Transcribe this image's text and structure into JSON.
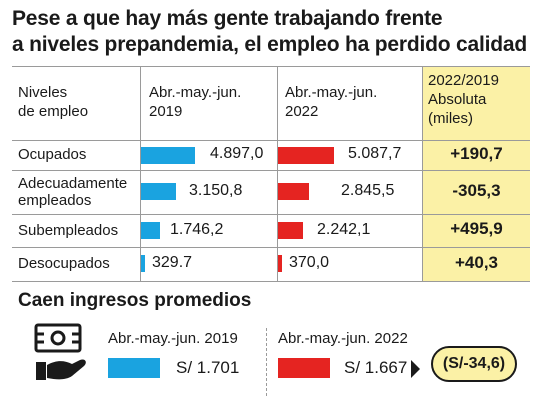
{
  "title_line1": "Pese a que hay más gente trabajando frente",
  "title_line2": "a niveles prepandemia, el empleo ha perdido calidad",
  "header": {
    "col1_line1": "Niveles",
    "col1_line2": "de empleo",
    "col2_line1": "Abr.-may.-jun.",
    "col2_line2": "2019",
    "col3_line1": "Abr.-may.-jun.",
    "col3_line2": "2022",
    "col4_line1": "2022/2019",
    "col4_line2": "Absoluta",
    "col4_line3": "(miles)"
  },
  "chart_data": {
    "type": "bar",
    "categories": [
      "Ocupados",
      "Adecuadamente empleados",
      "Subempleados",
      "Desocupados"
    ],
    "series": [
      {
        "name": "Abr.-may.-jun. 2019",
        "values": [
          4897.0,
          3150.8,
          1746.2,
          329.7
        ]
      },
      {
        "name": "Abr.-may.-jun. 2022",
        "values": [
          5087.7,
          2845.5,
          2242.1,
          370.0
        ]
      }
    ],
    "change": [
      190.7,
      -305.3,
      495.9,
      40.3
    ],
    "colors": {
      "2019": "#1aa3e0",
      "2022": "#e52421",
      "highlight": "#fbf1a6"
    }
  },
  "rows": [
    {
      "label1": "Ocupados",
      "label2": "",
      "v2019": "4.897,0",
      "v2022": "5.087,7",
      "change": "+190,7"
    },
    {
      "label1": "Adecuadamente",
      "label2": "empleados",
      "v2019": "3.150,8",
      "v2022": "2.845,5",
      "change": "-305,3"
    },
    {
      "label1": "Subempleados",
      "label2": "",
      "v2019": "1.746,2",
      "v2022": "2.242,1",
      "change": "+495,9"
    },
    {
      "label1": "Desocupados",
      "label2": "",
      "v2019": "329.7",
      "v2022": "370,0",
      "change": "+40,3"
    }
  ],
  "income": {
    "subtitle": "Caen ingresos promedios",
    "label_2019": "Abr.-may.-jun. 2019",
    "label_2022": "Abr.-may.-jun. 2022",
    "value_2019": "S/ 1.701",
    "value_2022": "S/ 1.667",
    "change": "(S/-34,6)",
    "icon": "money-hand-icon"
  }
}
